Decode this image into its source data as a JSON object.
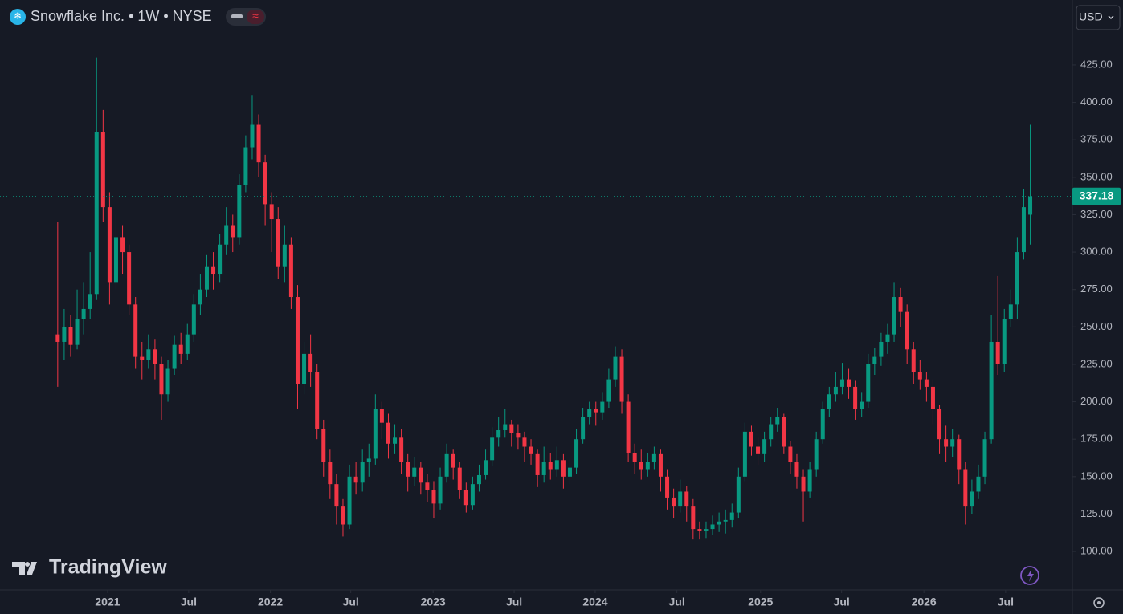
{
  "header": {
    "title": "Snowflake Inc. • 1W • NYSE",
    "currency": "USD"
  },
  "watermark": "TradingView",
  "chart_data": {
    "type": "candlestick",
    "up_color": "#089981",
    "down_color": "#f23645",
    "open": [
      245,
      240,
      250,
      238,
      255,
      262,
      272,
      380,
      330,
      280,
      310,
      300,
      265,
      230,
      228,
      235,
      225,
      205,
      222,
      238,
      232,
      245,
      265,
      275,
      290,
      285,
      305,
      318,
      310,
      345,
      370,
      385,
      360,
      332,
      322,
      290,
      305,
      270,
      212,
      232,
      220,
      182,
      160,
      145,
      130,
      118,
      150,
      146,
      160,
      162,
      195,
      186,
      172,
      176,
      160,
      150,
      156,
      146,
      141,
      132,
      150,
      165,
      156,
      141,
      131,
      145,
      151,
      161,
      176,
      181,
      185,
      179,
      176,
      170,
      165,
      151,
      160,
      155,
      161,
      150,
      156,
      175,
      190,
      195,
      193,
      200,
      215,
      230,
      200,
      166,
      160,
      155,
      160,
      165,
      150,
      136,
      130,
      140,
      130,
      115,
      114,
      115,
      118,
      120,
      121,
      126,
      150,
      180,
      170,
      165,
      175,
      185,
      190,
      170,
      160,
      150,
      140,
      155,
      175,
      195,
      205,
      210,
      215,
      210,
      195,
      200,
      225,
      230,
      240,
      245,
      270,
      260,
      235,
      220,
      215,
      210,
      195,
      175,
      170,
      175,
      155,
      130,
      140,
      150,
      175,
      240,
      225,
      255,
      265,
      300,
      325
    ],
    "high": [
      320,
      262,
      258,
      275,
      280,
      300,
      430,
      395,
      340,
      325,
      318,
      305,
      270,
      240,
      245,
      242,
      230,
      228,
      244,
      246,
      252,
      272,
      285,
      298,
      300,
      312,
      330,
      325,
      352,
      378,
      405,
      392,
      365,
      340,
      330,
      318,
      310,
      278,
      240,
      245,
      225,
      188,
      168,
      152,
      135,
      158,
      160,
      168,
      172,
      205,
      200,
      192,
      185,
      182,
      165,
      163,
      160,
      152,
      147,
      156,
      172,
      168,
      160,
      146,
      150,
      158,
      168,
      183,
      190,
      195,
      188,
      185,
      180,
      175,
      168,
      170,
      166,
      170,
      165,
      162,
      182,
      196,
      200,
      200,
      206,
      222,
      237,
      235,
      205,
      172,
      168,
      166,
      170,
      168,
      155,
      142,
      148,
      144,
      135,
      120,
      120,
      124,
      126,
      128,
      132,
      156,
      186,
      184,
      176,
      180,
      190,
      196,
      192,
      174,
      165,
      155,
      160,
      180,
      200,
      210,
      220,
      226,
      222,
      214,
      206,
      232,
      236,
      246,
      252,
      280,
      276,
      265,
      240,
      228,
      220,
      215,
      198,
      184,
      182,
      178,
      160,
      148,
      158,
      180,
      258,
      284,
      262,
      275,
      310,
      342,
      385
    ],
    "low": [
      210,
      228,
      230,
      235,
      245,
      255,
      268,
      320,
      265,
      275,
      285,
      258,
      222,
      215,
      222,
      215,
      188,
      200,
      218,
      225,
      228,
      240,
      258,
      270,
      275,
      280,
      298,
      300,
      305,
      340,
      362,
      350,
      318,
      300,
      282,
      280,
      262,
      195,
      205,
      210,
      175,
      150,
      135,
      118,
      110,
      115,
      138,
      140,
      150,
      158,
      175,
      162,
      165,
      152,
      140,
      144,
      138,
      133,
      122,
      128,
      146,
      148,
      135,
      126,
      128,
      140,
      148,
      157,
      170,
      176,
      170,
      168,
      160,
      158,
      143,
      146,
      148,
      150,
      142,
      145,
      152,
      172,
      185,
      184,
      188,
      196,
      210,
      192,
      160,
      152,
      148,
      150,
      155,
      140,
      128,
      122,
      126,
      120,
      108,
      108,
      109,
      111,
      113,
      112,
      116,
      122,
      147,
      164,
      158,
      160,
      170,
      180,
      165,
      152,
      142,
      120,
      136,
      150,
      172,
      190,
      200,
      205,
      202,
      188,
      190,
      196,
      218,
      224,
      232,
      240,
      250,
      225,
      212,
      208,
      200,
      185,
      165,
      160,
      163,
      145,
      118,
      125,
      135,
      145,
      172,
      218,
      220,
      250,
      255,
      295,
      305
    ],
    "close": [
      240,
      250,
      238,
      255,
      262,
      272,
      380,
      330,
      280,
      310,
      300,
      265,
      230,
      228,
      235,
      225,
      205,
      222,
      238,
      232,
      245,
      265,
      275,
      290,
      285,
      305,
      318,
      310,
      345,
      370,
      385,
      360,
      332,
      322,
      290,
      305,
      270,
      212,
      232,
      220,
      182,
      160,
      145,
      130,
      118,
      150,
      146,
      160,
      162,
      195,
      186,
      172,
      176,
      160,
      150,
      156,
      146,
      141,
      132,
      150,
      165,
      156,
      141,
      131,
      145,
      151,
      161,
      176,
      181,
      185,
      179,
      176,
      170,
      165,
      151,
      160,
      155,
      161,
      150,
      156,
      175,
      190,
      195,
      193,
      200,
      215,
      230,
      200,
      166,
      160,
      155,
      160,
      165,
      150,
      136,
      130,
      140,
      130,
      115,
      114,
      115,
      118,
      120,
      121,
      126,
      150,
      180,
      170,
      165,
      175,
      185,
      190,
      170,
      160,
      150,
      140,
      155,
      175,
      195,
      205,
      210,
      215,
      210,
      195,
      200,
      225,
      230,
      240,
      245,
      270,
      260,
      235,
      220,
      215,
      210,
      195,
      175,
      170,
      175,
      155,
      130,
      140,
      150,
      175,
      240,
      225,
      255,
      265,
      300,
      330,
      337.18
    ],
    "xlim": [
      -8.9,
      156.5
    ],
    "xticks": [
      {
        "value": 7.7,
        "label": "2021"
      },
      {
        "value": 20.2,
        "label": "Jul"
      },
      {
        "value": 32.8,
        "label": "2022"
      },
      {
        "value": 45.2,
        "label": "Jul"
      },
      {
        "value": 57.9,
        "label": "2023"
      },
      {
        "value": 70.4,
        "label": "Jul"
      },
      {
        "value": 82.9,
        "label": "2024"
      },
      {
        "value": 95.5,
        "label": "Jul"
      },
      {
        "value": 108.4,
        "label": "2025"
      },
      {
        "value": 120.9,
        "label": "Jul"
      },
      {
        "value": 133.6,
        "label": "2026"
      },
      {
        "value": 146.2,
        "label": "Jul"
      }
    ],
    "ylim": [
      74.3,
      468.4
    ],
    "yticks": [
      {
        "value": 100,
        "label": "100.00"
      },
      {
        "value": 125,
        "label": "125.00"
      },
      {
        "value": 150,
        "label": "150.00"
      },
      {
        "value": 175,
        "label": "175.00"
      },
      {
        "value": 200,
        "label": "200.00"
      },
      {
        "value": 225,
        "label": "225.00"
      },
      {
        "value": 250,
        "label": "250.00"
      },
      {
        "value": 275,
        "label": "275.00"
      },
      {
        "value": 300,
        "label": "300.00"
      },
      {
        "value": 325,
        "label": "325.00"
      },
      {
        "value": 350,
        "label": "350.00"
      },
      {
        "value": 375,
        "label": "375.00"
      },
      {
        "value": 400,
        "label": "400.00"
      },
      {
        "value": 425,
        "label": "425.00"
      }
    ],
    "grid": false
  }
}
